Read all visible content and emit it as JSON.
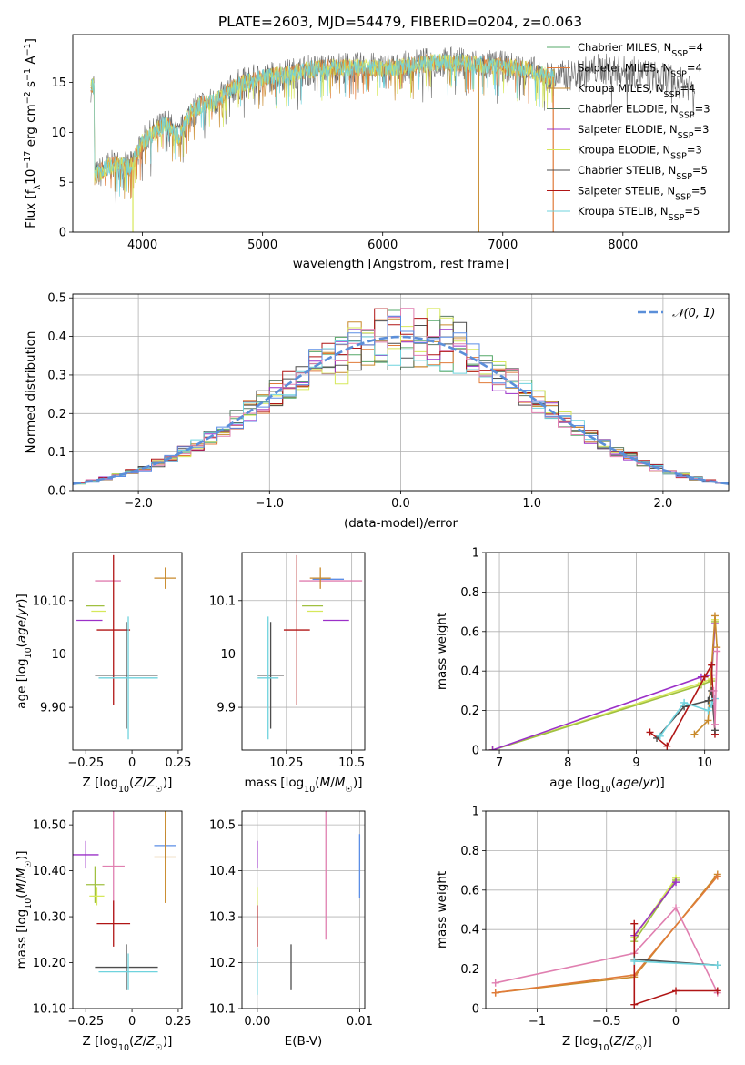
{
  "title": "PLATE=2603, MJD=54479, FIBERID=0204, z=0.063",
  "colors": {
    "chabrier_miles": "#55a868",
    "salpeter_miles": "#e07b39",
    "kroupa_miles": "#c98a2b",
    "chabrier_elodie": "#5a7a63",
    "salpeter_elodie": "#9b30c8",
    "kroupa_elodie": "#d6e85a",
    "chabrier_stelib": "#4d4d4d",
    "salpeter_stelib": "#b01515",
    "kroupa_stelib": "#6fd3de",
    "normal": "#5b8fd9",
    "pink": "#e07fb0",
    "blue": "#5b8ee6",
    "olive": "#a0c040"
  },
  "legend": {
    "entries": [
      {
        "key": "chabrier_miles",
        "base": "Chabrier MILES, N",
        "sub": "SSP",
        "suffix": "=4"
      },
      {
        "key": "salpeter_miles",
        "base": "Salpeter MILES, N",
        "sub": "SSP",
        "suffix": "=4"
      },
      {
        "key": "kroupa_miles",
        "base": "Kroupa MILES, N",
        "sub": "SSP",
        "suffix": "=4"
      },
      {
        "key": "chabrier_elodie",
        "base": "Chabrier ELODIE, N",
        "sub": "SSP",
        "suffix": "=3"
      },
      {
        "key": "salpeter_elodie",
        "base": "Salpeter ELODIE, N",
        "sub": "SSP",
        "suffix": "=3"
      },
      {
        "key": "kroupa_elodie",
        "base": "Kroupa ELODIE, N",
        "sub": "SSP",
        "suffix": "=3"
      },
      {
        "key": "chabrier_stelib",
        "base": "Chabrier STELIB, N",
        "sub": "SSP",
        "suffix": "=5"
      },
      {
        "key": "salpeter_stelib",
        "base": "Salpeter STELIB, N",
        "sub": "SSP",
        "suffix": "=5"
      },
      {
        "key": "kroupa_stelib",
        "base": "Kroupa STELIB, N",
        "sub": "SSP",
        "suffix": "=5"
      }
    ],
    "normal_label": "𝒩(0, 1)"
  },
  "chart_data": [
    {
      "id": "spectrum",
      "type": "line",
      "xlabel": "wavelength [Angstrom, rest frame]",
      "ylabel": "Flux [f_λ 10^-17 erg cm^-2 s^-1 A^-1]",
      "xlim": [
        3420,
        8880
      ],
      "ylim": [
        0,
        19.8
      ],
      "xticks": [
        4000,
        5000,
        6000,
        7000,
        8000
      ],
      "yticks": [
        0,
        5,
        10,
        15
      ],
      "envelope": {
        "x": [
          3600,
          3700,
          3800,
          3900,
          4000,
          4100,
          4200,
          4300,
          4400,
          4500,
          4600,
          4700,
          4800,
          5000,
          5200,
          5400,
          5600,
          5800,
          6000,
          6200,
          6400,
          6600,
          6800,
          7000,
          7200,
          7400,
          7600,
          7800,
          8000,
          8200,
          8400,
          8600
        ],
        "y": [
          5.5,
          6.5,
          6.8,
          6.5,
          9.0,
          10.0,
          11.0,
          9.5,
          12.0,
          12.8,
          13.0,
          14.0,
          14.8,
          15.5,
          15.8,
          16.3,
          16.5,
          16.5,
          16.4,
          16.6,
          17.0,
          17.0,
          16.8,
          16.6,
          16.3,
          15.5,
          15.8,
          16.4,
          16.2,
          15.8,
          15.2,
          14.6
        ]
      }
    },
    {
      "id": "residuals",
      "type": "bar",
      "xlabel": "(data-model)/error",
      "ylabel": "Normed distribution",
      "xlim": [
        -2.5,
        2.5
      ],
      "ylim": [
        0,
        0.51
      ],
      "xticks": [
        -2,
        -1,
        0,
        1,
        2
      ],
      "yticks": [
        0.0,
        0.1,
        0.2,
        0.3,
        0.4,
        0.5
      ],
      "bin_width": 0.1,
      "series": [
        {
          "name": "𝒩(0, 1)",
          "kind": "gaussian",
          "mu": 0,
          "sigma": 1
        }
      ]
    },
    {
      "id": "age_vs_Z",
      "type": "scatter",
      "xlabel": "Z [log10(Z/Z☉)]",
      "ylabel": "age [log10(age/yr)]",
      "xlim": [
        -0.32,
        0.27
      ],
      "ylim": [
        9.82,
        10.19
      ],
      "xticks": [
        -0.25,
        0.0,
        0.25
      ],
      "yticks": [
        9.9,
        10.0,
        10.1
      ],
      "points": [
        {
          "c": "pink",
          "x": -0.13,
          "xe": 0.07,
          "y": 10.137,
          "ye": 0.0
        },
        {
          "c": "kroupa_miles",
          "x": 0.18,
          "xe": 0.06,
          "y": 10.142,
          "ye": 0.02
        },
        {
          "c": "olive",
          "x": -0.2,
          "xe": 0.05,
          "y": 10.09,
          "ye": 0.0
        },
        {
          "c": "kroupa_elodie",
          "x": -0.18,
          "xe": 0.04,
          "y": 10.08,
          "ye": 0.0
        },
        {
          "c": "salpeter_elodie",
          "x": -0.23,
          "xe": 0.07,
          "y": 10.063,
          "ye": 0.0
        },
        {
          "c": "salpeter_stelib",
          "x": -0.1,
          "xe": 0.09,
          "y": 10.045,
          "ye": 0.14
        },
        {
          "c": "chabrier_stelib",
          "x": -0.03,
          "xe": 0.17,
          "y": 9.96,
          "ye": 0.1
        },
        {
          "c": "kroupa_stelib",
          "x": -0.02,
          "xe": 0.16,
          "y": 9.955,
          "ye": 0.115
        }
      ]
    },
    {
      "id": "age_vs_mass",
      "type": "scatter",
      "xlabel": "mass [log10(M/M☉)]",
      "ylabel": "",
      "xlim": [
        10.08,
        10.55
      ],
      "ylim": [
        9.82,
        10.19
      ],
      "xticks": [
        10.25,
        10.5
      ],
      "yticks": [
        9.9,
        10.0,
        10.1
      ],
      "points": [
        {
          "c": "pink",
          "x": 10.42,
          "xe": 0.12,
          "y": 10.137,
          "ye": 0.0
        },
        {
          "c": "blue",
          "x": 10.41,
          "xe": 0.06,
          "y": 10.14,
          "ye": 0.0
        },
        {
          "c": "kroupa_miles",
          "x": 10.38,
          "xe": 0.04,
          "y": 10.142,
          "ye": 0.02
        },
        {
          "c": "olive",
          "x": 10.35,
          "xe": 0.04,
          "y": 10.09,
          "ye": 0.0
        },
        {
          "c": "kroupa_elodie",
          "x": 10.36,
          "xe": 0.03,
          "y": 10.08,
          "ye": 0.0
        },
        {
          "c": "salpeter_elodie",
          "x": 10.44,
          "xe": 0.05,
          "y": 10.063,
          "ye": 0.0
        },
        {
          "c": "salpeter_stelib",
          "x": 10.29,
          "xe": 0.05,
          "y": 10.045,
          "ye": 0.14
        },
        {
          "c": "chabrier_stelib",
          "x": 10.19,
          "xe": 0.05,
          "y": 9.96,
          "ye": 0.1
        },
        {
          "c": "kroupa_stelib",
          "x": 10.18,
          "xe": 0.04,
          "y": 9.955,
          "ye": 0.115
        }
      ]
    },
    {
      "id": "weight_vs_age",
      "type": "line",
      "xlabel": "age [log10(age/yr)]",
      "ylabel": "mass weight",
      "xlim": [
        6.8,
        10.35
      ],
      "ylim": [
        0,
        1.0
      ],
      "xticks": [
        7,
        8,
        9,
        10
      ],
      "yticks": [
        0.0,
        0.2,
        0.4,
        0.6,
        0.8,
        1.0
      ],
      "series": [
        {
          "c": "kroupa_elodie",
          "x": [
            6.9,
            9.95,
            10.1,
            10.15
          ],
          "y": [
            0.0,
            0.34,
            0.36,
            0.66
          ]
        },
        {
          "c": "olive",
          "x": [
            6.9,
            9.95,
            10.1,
            10.15
          ],
          "y": [
            0.0,
            0.33,
            0.35,
            0.65
          ]
        },
        {
          "c": "salpeter_elodie",
          "x": [
            6.9,
            9.95,
            10.1,
            10.15
          ],
          "y": [
            0.0,
            0.37,
            0.38,
            0.64
          ]
        },
        {
          "c": "kroupa_miles",
          "x": [
            9.85,
            10.05,
            10.15,
            10.18
          ],
          "y": [
            0.08,
            0.15,
            0.68,
            0.52
          ]
        },
        {
          "c": "salpeter_stelib",
          "x": [
            9.2,
            9.45,
            10.0,
            10.1,
            10.15
          ],
          "y": [
            0.09,
            0.02,
            0.37,
            0.43,
            0.08
          ]
        },
        {
          "c": "chabrier_stelib",
          "x": [
            9.3,
            9.7,
            10.05,
            10.1,
            10.15
          ],
          "y": [
            0.06,
            0.22,
            0.25,
            0.3,
            0.1
          ]
        },
        {
          "c": "kroupa_stelib",
          "x": [
            9.35,
            9.7,
            10.05,
            10.1,
            10.15
          ],
          "y": [
            0.07,
            0.24,
            0.2,
            0.23,
            0.26
          ]
        },
        {
          "c": "pink",
          "x": [
            10.13,
            10.15,
            10.18
          ],
          "y": [
            0.3,
            0.13,
            0.5
          ]
        }
      ]
    },
    {
      "id": "mass_vs_Z",
      "type": "scatter",
      "xlabel": "Z [log10(Z/Z☉)]",
      "ylabel": "mass [log10(M/M☉)]",
      "xlim": [
        -0.32,
        0.27
      ],
      "ylim": [
        10.1,
        10.53
      ],
      "xticks": [
        -0.25,
        0.0,
        0.25
      ],
      "yticks": [
        10.1,
        10.2,
        10.3,
        10.4,
        10.5
      ],
      "points": [
        {
          "c": "blue",
          "x": 0.18,
          "xe": 0.06,
          "y": 10.455,
          "ye": 0.03
        },
        {
          "c": "pink",
          "x": -0.1,
          "xe": 0.06,
          "y": 10.41,
          "ye": 0.12
        },
        {
          "c": "salpeter_elodie",
          "x": -0.25,
          "xe": 0.07,
          "y": 10.435,
          "ye": 0.03
        },
        {
          "c": "kroupa_miles",
          "x": 0.18,
          "xe": 0.06,
          "y": 10.43,
          "ye": 0.1
        },
        {
          "c": "olive",
          "x": -0.2,
          "xe": 0.05,
          "y": 10.37,
          "ye": 0.04
        },
        {
          "c": "kroupa_elodie",
          "x": -0.19,
          "xe": 0.04,
          "y": 10.345,
          "ye": 0.02
        },
        {
          "c": "salpeter_stelib",
          "x": -0.1,
          "xe": 0.09,
          "y": 10.285,
          "ye": 0.05
        },
        {
          "c": "chabrier_stelib",
          "x": -0.03,
          "xe": 0.17,
          "y": 10.19,
          "ye": 0.05
        },
        {
          "c": "kroupa_stelib",
          "x": -0.02,
          "xe": 0.16,
          "y": 10.18,
          "ye": 0.04
        }
      ]
    },
    {
      "id": "mass_vs_ebv",
      "type": "scatter",
      "xlabel": "E(B-V)",
      "ylabel": "",
      "xlim": [
        -0.0015,
        0.0105
      ],
      "ylim": [
        10.1,
        10.53
      ],
      "xticks": [
        0.0,
        0.01
      ],
      "yticks": [
        10.1,
        10.2,
        10.3,
        10.4,
        10.5
      ],
      "points": [
        {
          "c": "salpeter_elodie",
          "x": 0.0,
          "xe": 0.0,
          "y": 10.435,
          "ye": 0.03
        },
        {
          "c": "salpeter_stelib",
          "x": 0.0,
          "xe": 0.0,
          "y": 10.285,
          "ye": 0.05
        },
        {
          "c": "kroupa_elodie",
          "x": 0.0,
          "xe": 0.0,
          "y": 10.345,
          "ye": 0.02
        },
        {
          "c": "kroupa_stelib",
          "x": 0.0,
          "xe": 0.0,
          "y": 10.18,
          "ye": 0.05
        },
        {
          "c": "chabrier_stelib",
          "x": 0.0033,
          "xe": 0.0,
          "y": 10.19,
          "ye": 0.05
        },
        {
          "c": "pink",
          "x": 0.0067,
          "xe": 0.0,
          "y": 10.39,
          "ye": 0.14
        },
        {
          "c": "blue",
          "x": 0.01,
          "xe": 0.0,
          "y": 10.41,
          "ye": 0.07
        }
      ]
    },
    {
      "id": "weight_vs_Z",
      "type": "line",
      "xlabel": "Z [log10(Z/Z☉)]",
      "ylabel": "mass weight",
      "xlim": [
        -1.37,
        0.38
      ],
      "ylim": [
        0,
        1.0
      ],
      "xticks": [
        -1.0,
        -0.5,
        0.0
      ],
      "yticks": [
        0.0,
        0.2,
        0.4,
        0.6,
        0.8,
        1.0
      ],
      "series": [
        {
          "c": "kroupa_miles",
          "x": [
            -1.3,
            -0.3,
            0.3
          ],
          "y": [
            0.08,
            0.16,
            0.68
          ]
        },
        {
          "c": "salpeter_miles",
          "x": [
            -1.3,
            -0.3,
            0.3
          ],
          "y": [
            0.08,
            0.17,
            0.67
          ]
        },
        {
          "c": "pink",
          "x": [
            -1.3,
            -0.3,
            0.0,
            0.3
          ],
          "y": [
            0.13,
            0.28,
            0.51,
            0.08
          ]
        },
        {
          "c": "kroupa_elodie",
          "x": [
            -0.3,
            0.0
          ],
          "y": [
            0.36,
            0.66
          ]
        },
        {
          "c": "olive",
          "x": [
            -0.3,
            0.0
          ],
          "y": [
            0.34,
            0.65
          ]
        },
        {
          "c": "salpeter_elodie",
          "x": [
            -0.3,
            0.0
          ],
          "y": [
            0.37,
            0.64
          ]
        },
        {
          "c": "salpeter_stelib",
          "x": [
            -0.3,
            -0.3,
            0.0,
            0.3
          ],
          "y": [
            0.43,
            0.02,
            0.09,
            0.09
          ]
        },
        {
          "c": "chabrier_stelib",
          "x": [
            -0.3,
            0.3
          ],
          "y": [
            0.25,
            0.22
          ]
        },
        {
          "c": "kroupa_stelib",
          "x": [
            -0.3,
            0.3
          ],
          "y": [
            0.24,
            0.22
          ]
        }
      ]
    }
  ]
}
